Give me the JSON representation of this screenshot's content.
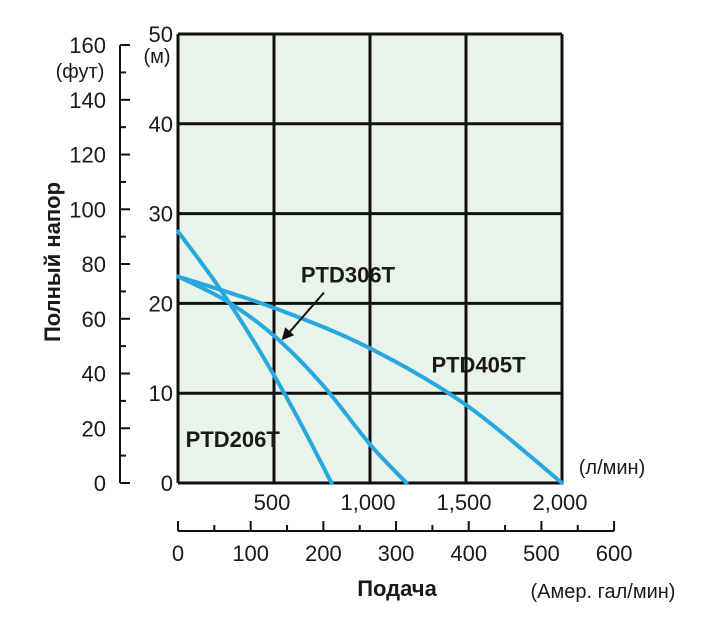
{
  "chart_data": {
    "type": "line",
    "ylabel": "Полный напор",
    "xlabel": "Подача",
    "xlim": [
      0,
      2000
    ],
    "ylim": [
      0,
      50
    ],
    "grid": true,
    "colors": {
      "plot_bg": "#e8f4ea",
      "grid": "#111111",
      "curve": "#29a8e0",
      "text": "#1a1a1a"
    },
    "axes": {
      "x_primary": {
        "unit": "(л/мин)",
        "ticks": [
          "500",
          "1,000",
          "1,500",
          "2,000"
        ],
        "values": [
          500,
          1000,
          1500,
          2000
        ]
      },
      "x_secondary": {
        "unit": "(Амер. гал/мин)",
        "ticks": [
          "0",
          "100",
          "200",
          "300",
          "400",
          "500",
          "600"
        ],
        "values": [
          0,
          100,
          200,
          300,
          400,
          500,
          600
        ]
      },
      "y_primary": {
        "unit": "(м)",
        "ticks": [
          "0",
          "10",
          "20",
          "30",
          "40",
          "50"
        ],
        "values": [
          0,
          10,
          20,
          30,
          40,
          50
        ]
      },
      "y_secondary": {
        "unit": "(фут)",
        "ticks": [
          "0",
          "20",
          "40",
          "60",
          "80",
          "100",
          "120",
          "140",
          "160"
        ],
        "values": [
          0,
          20,
          40,
          60,
          80,
          100,
          120,
          140,
          160
        ]
      }
    },
    "series": [
      {
        "name": "PTD206T",
        "x": [
          0,
          200,
          400,
          600,
          800
        ],
        "y": [
          28,
          22.2,
          15.6,
          8.2,
          0
        ]
      },
      {
        "name": "PTD306T",
        "x": [
          0,
          250,
          500,
          750,
          1000,
          1190
        ],
        "y": [
          23,
          20.3,
          16.4,
          11,
          4.3,
          0
        ]
      },
      {
        "name": "PTD405T",
        "x": [
          0,
          500,
          1000,
          1500,
          2000
        ],
        "y": [
          23,
          19.5,
          15,
          8.7,
          0
        ]
      }
    ],
    "annotations": [
      {
        "text": "PTD306T",
        "points_to_series": "PTD306T"
      }
    ]
  }
}
